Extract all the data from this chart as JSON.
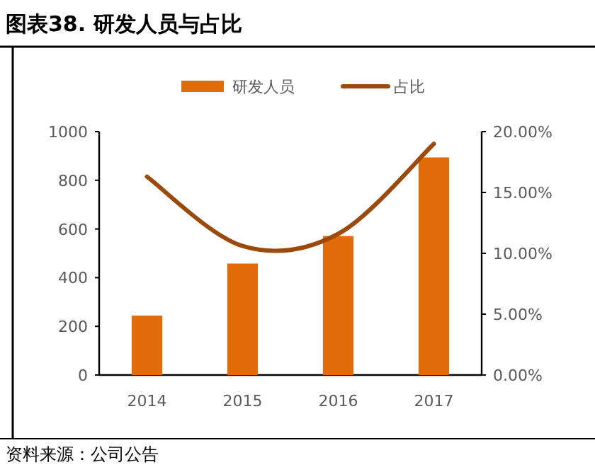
{
  "chart_data": {
    "type": "bar",
    "title": "图表38. 研发人员与占比",
    "categories": [
      "2014",
      "2015",
      "2016",
      "2017"
    ],
    "series": [
      {
        "name": "研发人员",
        "color": "#e36c0a",
        "values": [
          244,
          458,
          571,
          894
        ]
      },
      {
        "name": "占比",
        "type": "line",
        "axis": "y2",
        "color": "#9c4a0c",
        "values": [
          16.3,
          10.6,
          11.6,
          19.0
        ]
      }
    ],
    "ylim": [
      0,
      1000
    ],
    "yticks": [
      0,
      200,
      400,
      600,
      800,
      1000
    ],
    "y2lim": [
      0,
      20
    ],
    "y2ticks": [
      {
        "value": 0,
        "label": "0.00%"
      },
      {
        "value": 5,
        "label": "5.00%"
      },
      {
        "value": 10,
        "label": "10.00%"
      },
      {
        "value": 15,
        "label": "15.00%"
      },
      {
        "value": 20,
        "label": "20.00%"
      }
    ],
    "legend": "top",
    "annotations": [
      "资料来源：公司公告"
    ]
  }
}
